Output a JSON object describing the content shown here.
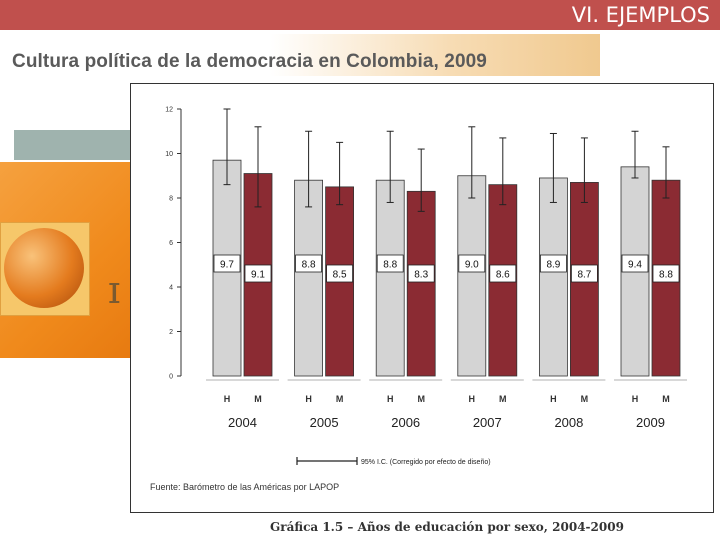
{
  "slide": {
    "title": "VI. EJEMPLOS",
    "subtitle": "Cultura política de la democracia en Colombia, 2009",
    "source": "Fuente: Barómetro de las Américas por LAPOP",
    "caption": "Gráfica 1.5 – Años de educación por sexo, 2004-2009"
  },
  "colors": {
    "topbar": "#c0504d",
    "hombres_bar": "#d4d4d4",
    "mujeres_bar": "#8b2b33"
  },
  "chart_data": {
    "type": "bar",
    "categories": [
      "2004",
      "2005",
      "2006",
      "2007",
      "2008",
      "2009"
    ],
    "subcategories": [
      "H",
      "M"
    ],
    "series": [
      {
        "values": [
          9.7,
          8.8,
          8.8,
          9.0,
          8.9,
          9.4
        ]
      },
      {
        "values": [
          9.1,
          8.5,
          8.3,
          8.6,
          8.7,
          8.8
        ]
      }
    ],
    "value_labels": [
      [
        "9.7",
        "8.8",
        "8.8",
        "9.0",
        "8.9",
        "9.4"
      ],
      [
        "9.1",
        "8.5",
        "8.3",
        "8.6",
        "8.7",
        "8.8"
      ]
    ],
    "error_bars": [
      [
        [
          8.6,
          12.0
        ],
        [
          7.6,
          11.0
        ],
        [
          7.8,
          11.0
        ],
        [
          8.0,
          11.2
        ],
        [
          7.8,
          10.9
        ],
        [
          8.9,
          11.0
        ]
      ],
      [
        [
          7.6,
          11.2
        ],
        [
          7.7,
          10.5
        ],
        [
          7.4,
          10.2
        ],
        [
          7.7,
          10.7
        ],
        [
          7.8,
          10.7
        ],
        [
          8.0,
          10.3
        ]
      ]
    ],
    "yticks": [
      0,
      2,
      4,
      6,
      8,
      10,
      12
    ],
    "ylim": [
      0,
      12
    ],
    "legend_label": "95% I.C. (Corregido por efecto de diseño)",
    "grid": false
  }
}
